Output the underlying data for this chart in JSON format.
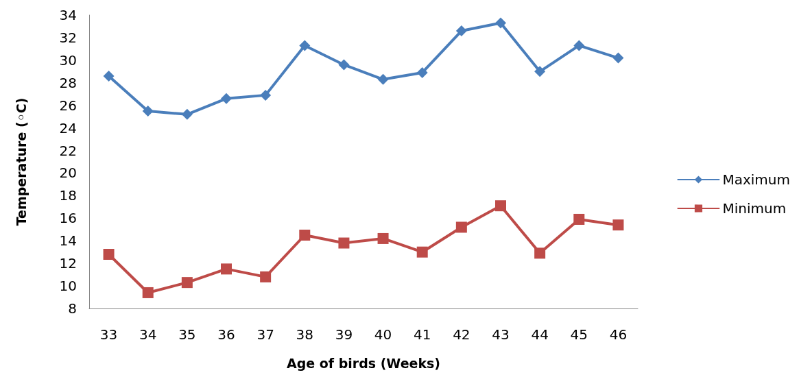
{
  "chart_data": {
    "type": "line",
    "xlabel": "Age of birds (Weeks)",
    "ylabel": "Temperature (◦C)",
    "categories": [
      "33",
      "34",
      "35",
      "36",
      "37",
      "38",
      "39",
      "40",
      "41",
      "42",
      "43",
      "44",
      "45",
      "46"
    ],
    "series": [
      {
        "name": "Maximum",
        "color": "#4a7ebb",
        "marker": "diamond",
        "values": [
          28.6,
          25.5,
          25.2,
          26.6,
          26.9,
          31.3,
          29.6,
          28.3,
          28.9,
          32.6,
          33.3,
          29.0,
          31.3,
          30.2
        ]
      },
      {
        "name": "Minimum",
        "color": "#be4b48",
        "marker": "square",
        "values": [
          12.8,
          9.4,
          10.3,
          11.5,
          10.8,
          14.5,
          13.8,
          14.2,
          13.0,
          15.2,
          17.1,
          12.9,
          15.9,
          15.4
        ]
      }
    ],
    "ylim": [
      8,
      34
    ],
    "yticks": [
      8,
      10,
      12,
      14,
      16,
      18,
      20,
      22,
      24,
      26,
      28,
      30,
      32,
      34
    ],
    "grid": false,
    "legend": "right",
    "line_style": "solid"
  }
}
